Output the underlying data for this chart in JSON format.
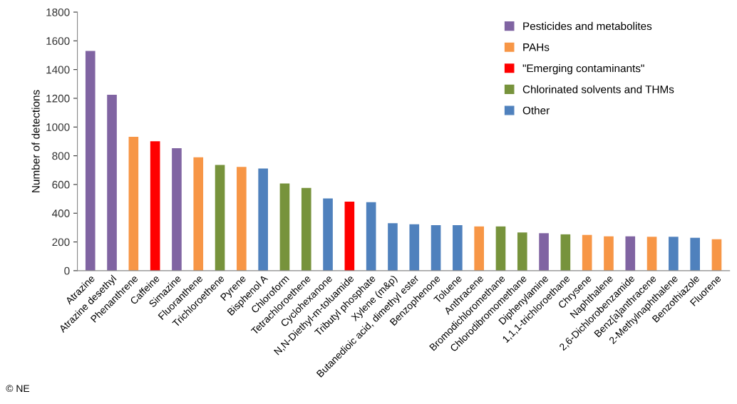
{
  "chart_data": {
    "type": "bar",
    "ylabel": "Number of detections",
    "categories": [
      "Atrazine",
      "Atrazine desethyl",
      "Phenanthrene",
      "Caffeine",
      "Simazine",
      "Fluoranthene",
      "Trichloroethene",
      "Pyrene",
      "Bisphenol A",
      "Chloroform",
      "Tetrachloroethene",
      "Cyclohexanone",
      "N,N-Diethyl-m-toluamide",
      "Tributyl phosphate",
      "Xylene (m&p)",
      "Butanedioic acid, dimethyl ester",
      "Benzophenone",
      "Toluene",
      "Anthracene",
      "Bromodichloromethane",
      "Chlorodibromomethane",
      "Diphenylamine",
      "1,1,1-trichloroethane",
      "Chrysene",
      "Naphthalene",
      "2,6-Dichlorobenzamide",
      "Benz[a]anthracene",
      "2-Methylnaphthalene",
      "Benzothiazole",
      "Fluorene"
    ],
    "series": [
      {
        "name": "Pesticides and metabolites",
        "color": "#8064a2",
        "values": [
          1530,
          1225,
          null,
          null,
          853,
          null,
          null,
          null,
          null,
          null,
          null,
          null,
          null,
          null,
          null,
          null,
          null,
          null,
          null,
          null,
          null,
          261,
          null,
          null,
          null,
          239,
          null,
          null,
          null,
          null
        ]
      },
      {
        "name": "PAHs",
        "color": "#f79646",
        "values": [
          null,
          null,
          932,
          null,
          null,
          789,
          null,
          723,
          null,
          null,
          null,
          null,
          null,
          null,
          null,
          null,
          null,
          null,
          308,
          null,
          null,
          null,
          null,
          249,
          239,
          null,
          236,
          null,
          null,
          219
        ]
      },
      {
        "name": "\"Emerging contaminants\"",
        "color": "#ff0000",
        "values": [
          null,
          null,
          null,
          901,
          null,
          null,
          null,
          null,
          null,
          null,
          null,
          null,
          480,
          null,
          null,
          null,
          null,
          null,
          null,
          null,
          null,
          null,
          null,
          null,
          null,
          null,
          null,
          null,
          null,
          null
        ]
      },
      {
        "name": "Chlorinated solvents and THMs",
        "color": "#77933c",
        "values": [
          null,
          null,
          null,
          null,
          null,
          null,
          736,
          null,
          null,
          607,
          576,
          null,
          null,
          null,
          null,
          null,
          null,
          null,
          null,
          308,
          266,
          null,
          253,
          null,
          null,
          null,
          null,
          null,
          null,
          null
        ]
      },
      {
        "name": "Other",
        "color": "#4f81bd",
        "values": [
          null,
          null,
          null,
          null,
          null,
          null,
          null,
          null,
          711,
          null,
          null,
          503,
          null,
          477,
          330,
          323,
          317,
          317,
          null,
          null,
          null,
          null,
          null,
          null,
          null,
          null,
          null,
          236,
          229,
          null
        ]
      }
    ],
    "ylim": [
      0,
      1800
    ],
    "yticks": [
      0,
      200,
      400,
      600,
      800,
      1000,
      1200,
      1400,
      1600,
      1800
    ],
    "grid": false,
    "legend": "top right",
    "annotations": [
      "© NE"
    ]
  }
}
